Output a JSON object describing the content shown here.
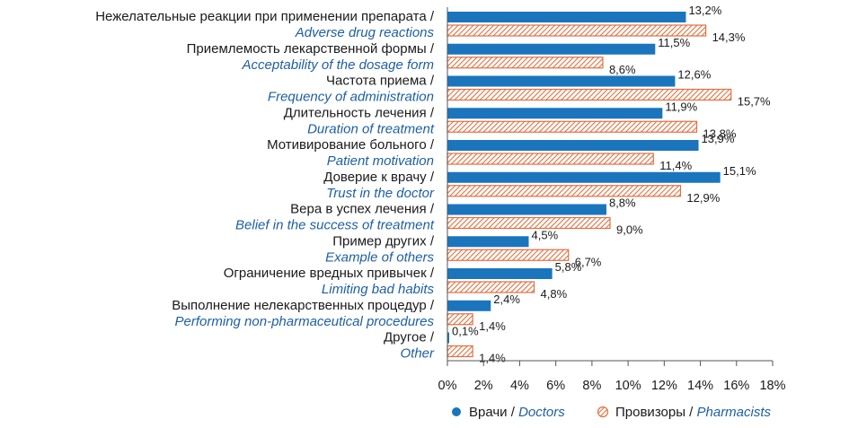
{
  "chart_data": {
    "type": "bar",
    "orientation": "horizontal",
    "categories": [
      {
        "ru": "Нежелательные реакции при применении препарата /",
        "en": "Adverse drug reactions"
      },
      {
        "ru": "Приемлемость лекарственной формы /",
        "en": "Acceptability of the dosage form"
      },
      {
        "ru": "Частота приема / ",
        "en": "Frequency of administration"
      },
      {
        "ru": "Длительность лечения / ",
        "en": "Duration of treatment"
      },
      {
        "ru": "Мотивирование больного / ",
        "en": "Patient motivation"
      },
      {
        "ru": "Доверие к врачу / ",
        "en": "Trust in the doctor"
      },
      {
        "ru": "Вера в успех лечения / ",
        "en": "Belief in the success of treatment"
      },
      {
        "ru": "Пример других / ",
        "en": "Example of others"
      },
      {
        "ru": "Ограничение вредных привычек / ",
        "en": "Limiting bad habits"
      },
      {
        "ru": "Выполнение нелекарственных процедур /",
        "en": "Performing non-pharmaceutical procedures"
      },
      {
        "ru": "Другое / ",
        "en": "Other"
      }
    ],
    "series": [
      {
        "ru": "Врачи / ",
        "en": "Doctors",
        "color": "#1a75bc",
        "values": [
          13.2,
          11.5,
          12.6,
          11.9,
          13.9,
          15.1,
          8.8,
          4.5,
          5.8,
          2.4,
          0.1
        ],
        "labels": [
          "13,2%",
          "11,5%",
          "12,6%",
          "11,9%",
          "13,9%",
          "15,1%",
          "8,8%",
          "4,5%",
          "5,8%",
          "2,4%",
          "0,1%"
        ]
      },
      {
        "ru": "Провизоры / ",
        "en": "Pharmacists",
        "color": "#e07040",
        "values": [
          14.3,
          8.6,
          15.7,
          13.8,
          11.4,
          12.9,
          9.0,
          6.7,
          4.8,
          1.4,
          1.4
        ],
        "labels": [
          "14,3%",
          "8,6%",
          "15,7%",
          "13,8%",
          "11,4%",
          "12,9%",
          "9,0%",
          "6,7%",
          "4,8%",
          "1,4%",
          "1,4%"
        ]
      }
    ],
    "xlim": [
      0,
      18
    ],
    "xticks": [
      "0%",
      "2%",
      "4%",
      "6%",
      "8%",
      "10%",
      "12%",
      "14%",
      "16%",
      "18%"
    ],
    "grid": false,
    "legend_position": "bottom"
  }
}
